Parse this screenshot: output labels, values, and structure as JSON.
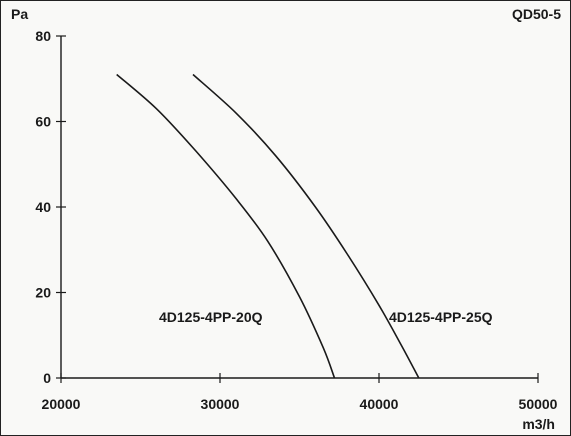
{
  "chart_data": {
    "type": "line",
    "title": "QD50-5",
    "ylabel": "Pa",
    "xlabel": "m3/h",
    "xlim": [
      20000,
      50000
    ],
    "ylim": [
      0,
      80
    ],
    "xticks": [
      20000,
      30000,
      40000,
      50000
    ],
    "yticks": [
      0,
      20,
      40,
      60,
      80
    ],
    "grid": false,
    "series": [
      {
        "name": "4D125-4PP-20Q",
        "color": "#1a1a1a",
        "x": [
          23500,
          26000,
          28500,
          31000,
          33000,
          35000,
          36500,
          37200
        ],
        "y": [
          71,
          63,
          53,
          42,
          32,
          19,
          7,
          0
        ]
      },
      {
        "name": "4D125-4PP-25Q",
        "color": "#1a1a1a",
        "x": [
          28300,
          31000,
          33500,
          36000,
          38000,
          40000,
          41500,
          42500
        ],
        "y": [
          71,
          62,
          52,
          40,
          29,
          17,
          7,
          0
        ]
      }
    ]
  }
}
